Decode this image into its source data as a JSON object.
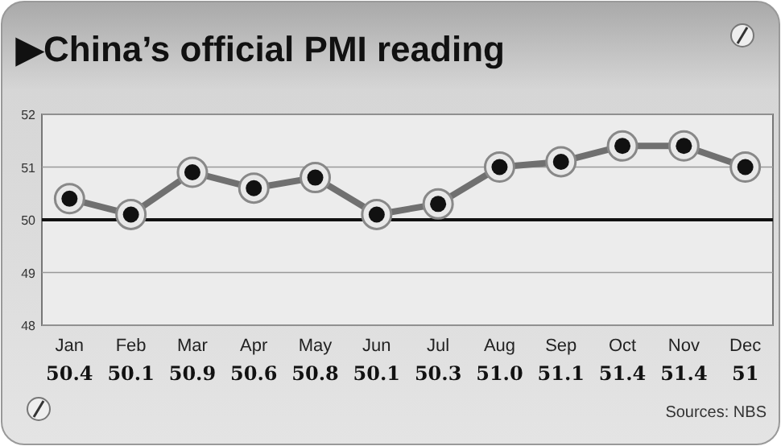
{
  "chart_data": {
    "type": "line",
    "title": "▶China’s official PMI reading",
    "categories": [
      "Jan",
      "Feb",
      "Mar",
      "Apr",
      "May",
      "Jun",
      "Jul",
      "Aug",
      "Sep",
      "Oct",
      "Nov",
      "Dec"
    ],
    "series": [
      {
        "color": "#707070",
        "values": [
          50.4,
          50.1,
          50.9,
          50.6,
          50.8,
          50.1,
          50.3,
          51.0,
          51.1,
          51.4,
          51.4,
          51
        ],
        "value_labels": [
          "50.4",
          "50.1",
          "50.9",
          "50.6",
          "50.8",
          "50.1",
          "50.3",
          "51.0",
          "51.1",
          "51.4",
          "51.4",
          "51"
        ]
      }
    ],
    "ylim": [
      48,
      52
    ],
    "yticks": [
      48,
      49,
      50,
      51,
      52
    ],
    "grid": "y",
    "marker": "circle",
    "line_style": "solid",
    "ref_lines": [
      {
        "axis": "y",
        "value": 50,
        "color": "#111111"
      }
    ],
    "annotations": [
      "Sources: NBS"
    ]
  }
}
